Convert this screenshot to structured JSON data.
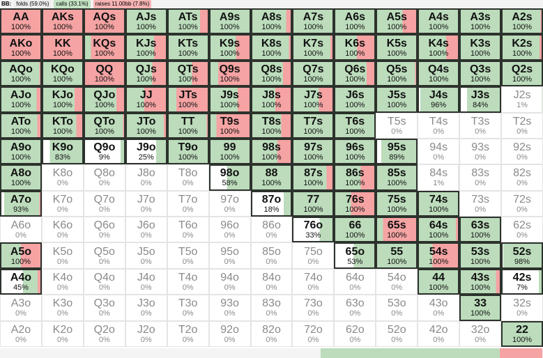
{
  "header": {
    "player": "BB:",
    "folds": "folds (59.0%)",
    "calls": "calls (33.1%)",
    "raises": "raises 11.00bb (7.8%)"
  },
  "totals": {
    "fold": 59.0,
    "call": 33.1,
    "raise": 7.8
  },
  "colors": {
    "call": "#bcdcbc",
    "raise": "#f5a3a3",
    "fold": "#ffffff"
  },
  "cell_format": [
    "hand",
    "frequency",
    "call_fraction",
    "raise_fraction"
  ],
  "grid": [
    [
      [
        "AA",
        "100%",
        0,
        1
      ],
      [
        "AKs",
        "100%",
        0,
        1
      ],
      [
        "AQs",
        "100%",
        0,
        1
      ],
      [
        "AJs",
        "100%",
        1,
        0
      ],
      [
        "ATs",
        "100%",
        0.8,
        0.2
      ],
      [
        "A9s",
        "100%",
        1,
        0
      ],
      [
        "A8s",
        "100%",
        0.88,
        0.12
      ],
      [
        "A7s",
        "100%",
        1,
        0
      ],
      [
        "A6s",
        "100%",
        1,
        0
      ],
      [
        "A5s",
        "100%",
        0.65,
        0.35
      ],
      [
        "A4s",
        "100%",
        1,
        0
      ],
      [
        "A3s",
        "100%",
        1,
        0
      ],
      [
        "A2s",
        "100%",
        0.97,
        0.03
      ]
    ],
    [
      [
        "AKo",
        "100%",
        0,
        1
      ],
      [
        "KK",
        "100%",
        0,
        1
      ],
      [
        "KQs",
        "100%",
        0.15,
        0.85
      ],
      [
        "KJs",
        "100%",
        0.7,
        0.3
      ],
      [
        "KTs",
        "100%",
        1,
        0
      ],
      [
        "K9s",
        "100%",
        0.65,
        0.35
      ],
      [
        "K8s",
        "100%",
        0.95,
        0.05
      ],
      [
        "K7s",
        "100%",
        0.95,
        0.05
      ],
      [
        "K6s",
        "100%",
        0.55,
        0.45
      ],
      [
        "K5s",
        "100%",
        1,
        0
      ],
      [
        "K4s",
        "100%",
        0.7,
        0.3
      ],
      [
        "K3s",
        "100%",
        1,
        0
      ],
      [
        "K2s",
        "100%",
        0.95,
        0.05
      ]
    ],
    [
      [
        "AQo",
        "100%",
        0.97,
        0.03
      ],
      [
        "KQo",
        "100%",
        1,
        0
      ],
      [
        "QQ",
        "100%",
        0,
        1
      ],
      [
        "QJs",
        "100%",
        0.65,
        0.35
      ],
      [
        "QTs",
        "100%",
        0.6,
        0.4
      ],
      [
        "Q9s",
        "100%",
        0.2,
        0.8
      ],
      [
        "Q8s",
        "100%",
        0.8,
        0.2
      ],
      [
        "Q7s",
        "100%",
        1,
        0
      ],
      [
        "Q6s",
        "100%",
        0.8,
        0.2
      ],
      [
        "Q5s",
        "100%",
        0.97,
        0.03
      ],
      [
        "Q4s",
        "100%",
        1,
        0
      ],
      [
        "Q3s",
        "100%",
        1,
        0
      ],
      [
        "Q2s",
        "100%",
        1,
        0
      ]
    ],
    [
      [
        "AJo",
        "100%",
        0.9,
        0.1
      ],
      [
        "KJo",
        "100%",
        0.8,
        0.2
      ],
      [
        "QJo",
        "100%",
        0.8,
        0.2
      ],
      [
        "JJ",
        "100%",
        0.45,
        0.55
      ],
      [
        "JTs",
        "100%",
        0.2,
        0.8
      ],
      [
        "J9s",
        "100%",
        0.7,
        0.3
      ],
      [
        "J8s",
        "100%",
        0.6,
        0.4
      ],
      [
        "J7s",
        "100%",
        0.65,
        0.35
      ],
      [
        "J6s",
        "100%",
        1,
        0
      ],
      [
        "J5s",
        "100%",
        1,
        0
      ],
      [
        "J4s",
        "96%",
        0.96,
        0
      ],
      [
        "J3s",
        "84%",
        0.84,
        0
      ],
      [
        "J2s",
        "1%",
        0.01,
        0
      ]
    ],
    [
      [
        "ATo",
        "100%",
        0.92,
        0.08
      ],
      [
        "KTo",
        "100%",
        0.85,
        0.15
      ],
      [
        "QTo",
        "100%",
        0.97,
        0.03
      ],
      [
        "JTo",
        "100%",
        0.95,
        0.05
      ],
      [
        "TT",
        "100%",
        0.97,
        0.03
      ],
      [
        "T9s",
        "100%",
        0.15,
        0.85
      ],
      [
        "T8s",
        "100%",
        0.75,
        0.25
      ],
      [
        "T7s",
        "100%",
        1,
        0
      ],
      [
        "T6s",
        "100%",
        1,
        0
      ],
      [
        "T5s",
        "0%",
        0,
        0
      ],
      [
        "T4s",
        "0%",
        0,
        0
      ],
      [
        "T3s",
        "0%",
        0,
        0
      ],
      [
        "T2s",
        "0%",
        0,
        0
      ]
    ],
    [
      [
        "A9o",
        "100%",
        1,
        0
      ],
      [
        "K9o",
        "83%",
        0.83,
        0
      ],
      [
        "Q9o",
        "9%",
        0.09,
        0
      ],
      [
        "J9o",
        "25%",
        0.25,
        0
      ],
      [
        "T9o",
        "100%",
        1,
        0
      ],
      [
        "99",
        "100%",
        1,
        0
      ],
      [
        "98s",
        "100%",
        0.65,
        0.35
      ],
      [
        "97s",
        "100%",
        1,
        0
      ],
      [
        "96s",
        "100%",
        1,
        0
      ],
      [
        "95s",
        "89%",
        0.89,
        0
      ],
      [
        "94s",
        "0%",
        0,
        0
      ],
      [
        "93s",
        "0%",
        0,
        0
      ],
      [
        "92s",
        "0%",
        0,
        0
      ]
    ],
    [
      [
        "A8o",
        "100%",
        1,
        0
      ],
      [
        "K8o",
        "0%",
        0,
        0
      ],
      [
        "Q8o",
        "0%",
        0,
        0
      ],
      [
        "J8o",
        "0%",
        0,
        0
      ],
      [
        "T8o",
        "0%",
        0,
        0
      ],
      [
        "98o",
        "58%",
        0.58,
        0
      ],
      [
        "88",
        "100%",
        1,
        0
      ],
      [
        "87s",
        "100%",
        0.85,
        0.15
      ],
      [
        "86s",
        "100%",
        0.65,
        0.35
      ],
      [
        "85s",
        "100%",
        1,
        0
      ],
      [
        "84s",
        "1%",
        0.01,
        0
      ],
      [
        "83s",
        "0%",
        0,
        0
      ],
      [
        "82s",
        "0%",
        0,
        0
      ]
    ],
    [
      [
        "A7o",
        "93%",
        0.9,
        0.03
      ],
      [
        "K7o",
        "0%",
        0,
        0
      ],
      [
        "Q7o",
        "0%",
        0,
        0
      ],
      [
        "J7o",
        "0%",
        0,
        0
      ],
      [
        "T7o",
        "0%",
        0,
        0
      ],
      [
        "97o",
        "0%",
        0,
        0
      ],
      [
        "87o",
        "18%",
        0.18,
        0
      ],
      [
        "77",
        "100%",
        1,
        0
      ],
      [
        "76s",
        "100%",
        0.4,
        0.6
      ],
      [
        "75s",
        "100%",
        1,
        0
      ],
      [
        "74s",
        "100%",
        1,
        0
      ],
      [
        "73s",
        "0%",
        0,
        0
      ],
      [
        "72s",
        "0%",
        0,
        0
      ]
    ],
    [
      [
        "A6o",
        "0%",
        0,
        0
      ],
      [
        "K6o",
        "0%",
        0,
        0
      ],
      [
        "Q6o",
        "0%",
        0,
        0
      ],
      [
        "J6o",
        "0%",
        0,
        0
      ],
      [
        "T6o",
        "0%",
        0,
        0
      ],
      [
        "96o",
        "0%",
        0,
        0
      ],
      [
        "86o",
        "0%",
        0,
        0
      ],
      [
        "76o",
        "33%",
        0.33,
        0
      ],
      [
        "66",
        "100%",
        1,
        0
      ],
      [
        "65s",
        "100%",
        0.15,
        0.85
      ],
      [
        "64s",
        "100%",
        0.95,
        0.05
      ],
      [
        "63s",
        "100%",
        1,
        0
      ],
      [
        "62s",
        "0%",
        0,
        0
      ]
    ],
    [
      [
        "A5o",
        "100%",
        0.5,
        0.5
      ],
      [
        "K5o",
        "0%",
        0,
        0
      ],
      [
        "Q5o",
        "0%",
        0,
        0
      ],
      [
        "J5o",
        "0%",
        0,
        0
      ],
      [
        "T5o",
        "0%",
        0,
        0
      ],
      [
        "95o",
        "0%",
        0,
        0
      ],
      [
        "85o",
        "0%",
        0,
        0
      ],
      [
        "75o",
        "0%",
        0,
        0
      ],
      [
        "65o",
        "53%",
        0.53,
        0
      ],
      [
        "55",
        "100%",
        1,
        0
      ],
      [
        "54s",
        "100%",
        0.35,
        0.65
      ],
      [
        "53s",
        "100%",
        1,
        0
      ],
      [
        "52s",
        "98%",
        0.98,
        0
      ]
    ],
    [
      [
        "A4o",
        "45%",
        0.38,
        0.07
      ],
      [
        "K4o",
        "0%",
        0,
        0
      ],
      [
        "Q4o",
        "0%",
        0,
        0
      ],
      [
        "J4o",
        "0%",
        0,
        0
      ],
      [
        "T4o",
        "0%",
        0,
        0
      ],
      [
        "94o",
        "0%",
        0,
        0
      ],
      [
        "84o",
        "0%",
        0,
        0
      ],
      [
        "74o",
        "0%",
        0,
        0
      ],
      [
        "64o",
        "0%",
        0,
        0
      ],
      [
        "54o",
        "0%",
        0,
        0
      ],
      [
        "44",
        "100%",
        1,
        0
      ],
      [
        "43s",
        "100%",
        0.9,
        0.1
      ],
      [
        "42s",
        "7%",
        0.07,
        0
      ]
    ],
    [
      [
        "A3o",
        "0%",
        0,
        0
      ],
      [
        "K3o",
        "0%",
        0,
        0
      ],
      [
        "Q3o",
        "0%",
        0,
        0
      ],
      [
        "J3o",
        "0%",
        0,
        0
      ],
      [
        "T3o",
        "0%",
        0,
        0
      ],
      [
        "93o",
        "0%",
        0,
        0
      ],
      [
        "83o",
        "0%",
        0,
        0
      ],
      [
        "73o",
        "0%",
        0,
        0
      ],
      [
        "63o",
        "0%",
        0,
        0
      ],
      [
        "53o",
        "0%",
        0,
        0
      ],
      [
        "43o",
        "0%",
        0,
        0
      ],
      [
        "33",
        "100%",
        1,
        0
      ],
      [
        "32s",
        "0%",
        0,
        0
      ]
    ],
    [
      [
        "A2o",
        "0%",
        0,
        0
      ],
      [
        "K2o",
        "0%",
        0,
        0
      ],
      [
        "Q2o",
        "0%",
        0,
        0
      ],
      [
        "J2o",
        "0%",
        0,
        0
      ],
      [
        "T2o",
        "0%",
        0,
        0
      ],
      [
        "92o",
        "0%",
        0,
        0
      ],
      [
        "82o",
        "0%",
        0,
        0
      ],
      [
        "72o",
        "0%",
        0,
        0
      ],
      [
        "62o",
        "0%",
        0,
        0
      ],
      [
        "52o",
        "0%",
        0,
        0
      ],
      [
        "42o",
        "0%",
        0,
        0
      ],
      [
        "32o",
        "0%",
        0,
        0
      ],
      [
        "22",
        "100%",
        1,
        0
      ]
    ]
  ]
}
